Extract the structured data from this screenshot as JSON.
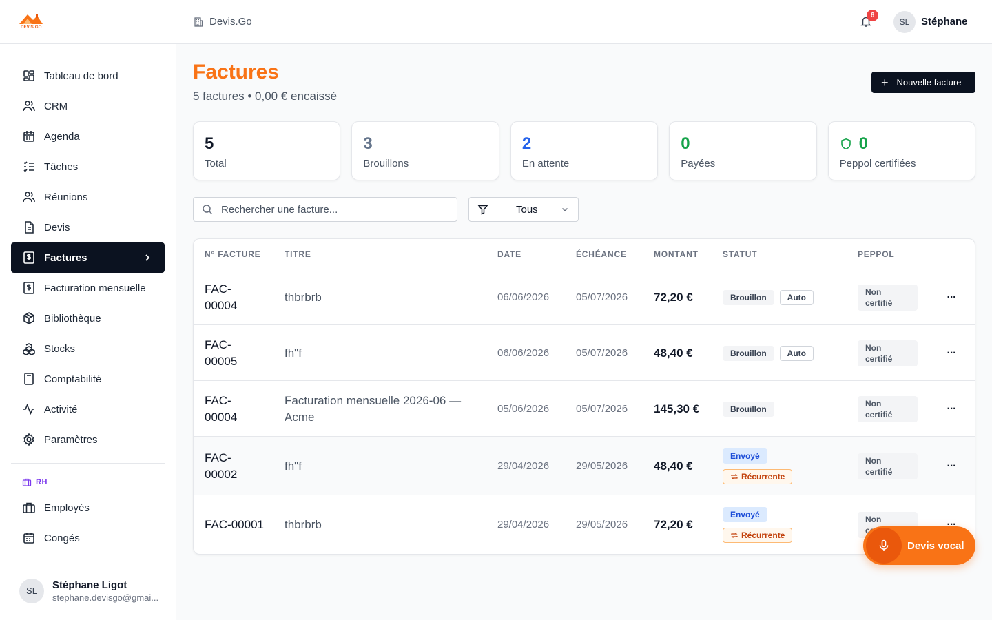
{
  "app": {
    "logo_text": "DEVIS.GO",
    "breadcrumb": "Devis.Go"
  },
  "topbar": {
    "notification_count": "6",
    "avatar_initials": "SL",
    "user_name": "Stéphane"
  },
  "sidebar": {
    "items": [
      {
        "label": "Tableau de bord",
        "icon": "dashboard-icon"
      },
      {
        "label": "CRM",
        "icon": "users-icon"
      },
      {
        "label": "Agenda",
        "icon": "calendar-icon"
      },
      {
        "label": "Tâches",
        "icon": "tasks-icon"
      },
      {
        "label": "Réunions",
        "icon": "meeting-icon"
      },
      {
        "label": "Devis",
        "icon": "document-icon"
      },
      {
        "label": "Factures",
        "icon": "invoice-icon",
        "active": true
      },
      {
        "label": "Facturation mensuelle",
        "icon": "invoice-icon"
      },
      {
        "label": "Bibliothèque",
        "icon": "package-icon"
      },
      {
        "label": "Stocks",
        "icon": "boxes-icon"
      },
      {
        "label": "Comptabilité",
        "icon": "calculator-icon"
      },
      {
        "label": "Activité",
        "icon": "activity-icon"
      },
      {
        "label": "Paramètres",
        "icon": "gear-icon"
      }
    ],
    "section_rh": "RH",
    "rh_items": [
      {
        "label": "Employés",
        "icon": "briefcase-icon"
      },
      {
        "label": "Congés",
        "icon": "calendar-icon"
      }
    ],
    "user": {
      "initials": "SL",
      "name": "Stéphane Ligot",
      "email": "stephane.devisgo@gmai..."
    }
  },
  "page": {
    "title": "Factures",
    "subtitle": "5 factures • 0,00 € encaissé",
    "new_button": "Nouvelle facture"
  },
  "stats": [
    {
      "value": "5",
      "label": "Total",
      "color": "#111827"
    },
    {
      "value": "3",
      "label": "Brouillons",
      "color": "#64748b"
    },
    {
      "value": "2",
      "label": "En attente",
      "color": "#2563eb"
    },
    {
      "value": "0",
      "label": "Payées",
      "color": "#16a34a"
    },
    {
      "value": "0",
      "label": "Peppol certifiées",
      "color": "#16a34a",
      "icon": "shield-icon"
    }
  ],
  "filters": {
    "search_placeholder": "Rechercher une facture...",
    "status_value": "Tous"
  },
  "table": {
    "headers": {
      "number": "N° FACTURE",
      "title": "TITRE",
      "date": "DATE",
      "due": "ÉCHÉANCE",
      "amount": "MONTANT",
      "status": "STATUT",
      "peppol": "PEPPOL"
    },
    "rows": [
      {
        "number": "FAC-\n00004",
        "title": "thbrbrb",
        "date": "06/06/2026",
        "due": "05/07/2026",
        "amount": "72,20 €",
        "status": [
          "Brouillon",
          "Auto"
        ],
        "peppol": "Non certifié"
      },
      {
        "number": "FAC-\n00005",
        "title": "fh\"f",
        "date": "06/06/2026",
        "due": "05/07/2026",
        "amount": "48,40 €",
        "status": [
          "Brouillon",
          "Auto"
        ],
        "peppol": "Non certifié"
      },
      {
        "number": "FAC-\n00004",
        "title": "Facturation mensuelle 2026-06 — Acme",
        "date": "05/06/2026",
        "due": "05/07/2026",
        "amount": "145,30 €",
        "status": [
          "Brouillon"
        ],
        "peppol": "Non certifié"
      },
      {
        "number": "FAC-\n00002",
        "title": "fh\"f",
        "date": "29/04/2026",
        "due": "29/05/2026",
        "amount": "48,40 €",
        "status": [
          "Envoyé",
          "Récurrente"
        ],
        "peppol": "Non certifié"
      },
      {
        "number": "FAC-00001",
        "title": "thbrbrb",
        "date": "29/04/2026",
        "due": "29/05/2026",
        "amount": "72,20 €",
        "status": [
          "Envoyé",
          "Récurrente"
        ],
        "peppol": "Non certifié"
      }
    ]
  },
  "voice_button": "Devis vocal",
  "colors": {
    "accent": "#f97316",
    "dark": "#0b1220"
  }
}
